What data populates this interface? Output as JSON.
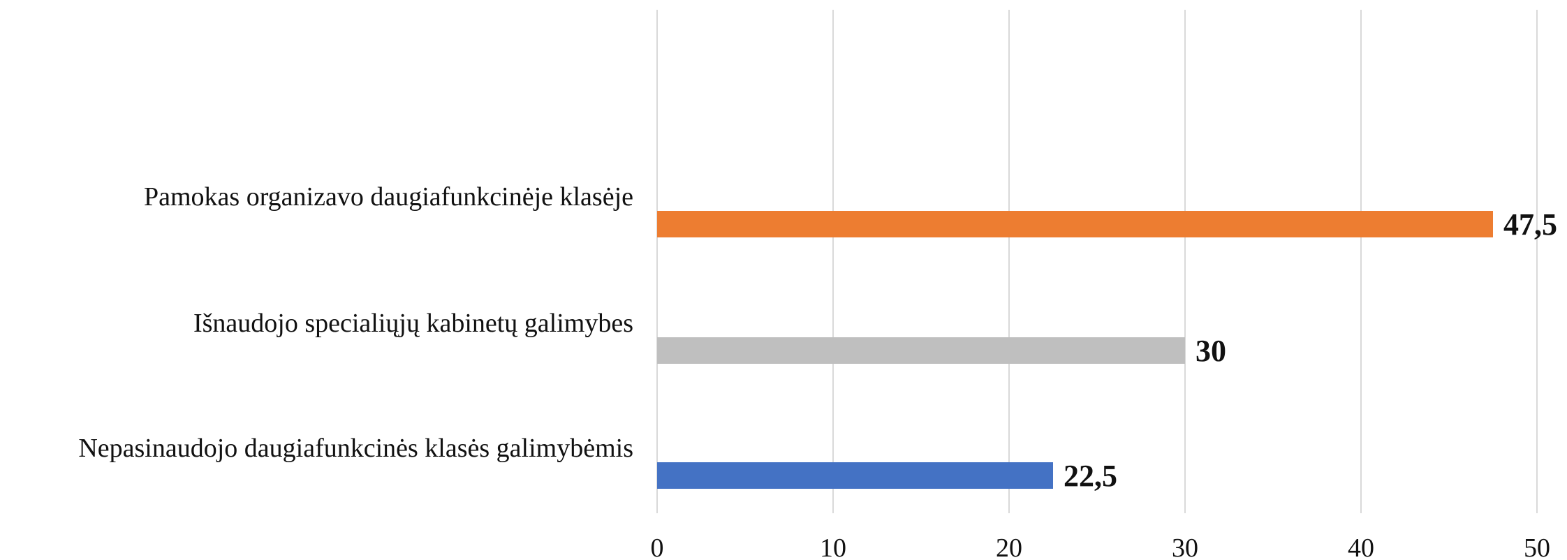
{
  "chart_data": {
    "type": "bar",
    "orientation": "horizontal",
    "categories": [
      "Pamokas organizavo daugiafunkcinėje klasėje",
      "Išnaudojo specialiųjų kabinetų galimybes",
      "Nepasinaudojo daugiafunkcinės klasės galimybėmis"
    ],
    "values": [
      47.5,
      30,
      22.5
    ],
    "value_labels": [
      "47,5",
      "30",
      "22,5"
    ],
    "bar_colors": [
      "#ED7D31",
      "#BFBFBF",
      "#4472C4"
    ],
    "xlim": [
      0,
      50
    ],
    "x_ticks": [
      0,
      10,
      20,
      30,
      40,
      50
    ],
    "grid": true,
    "legend": "none",
    "title": "",
    "xlabel": "",
    "ylabel": ""
  }
}
